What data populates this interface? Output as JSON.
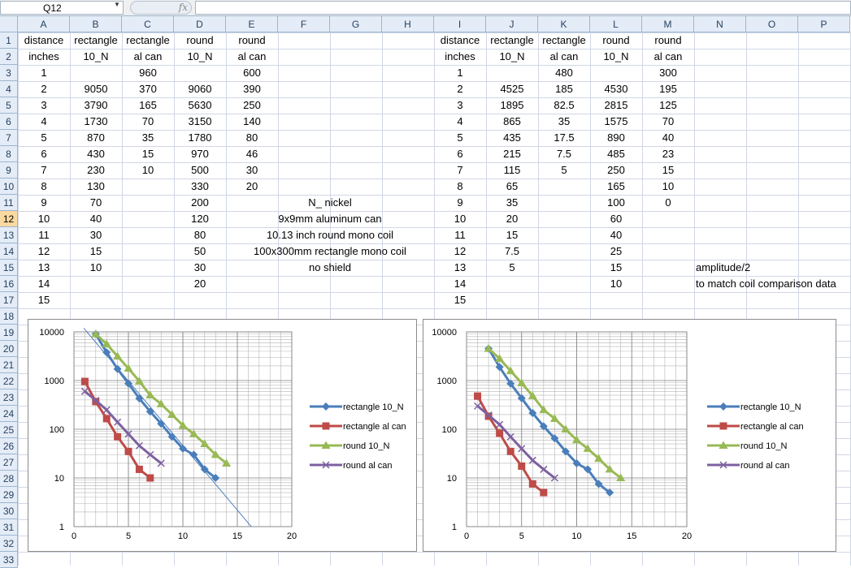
{
  "formula_bar": {
    "name_box": "Q12",
    "fx_label": "fx",
    "formula": ""
  },
  "columns": [
    "A",
    "B",
    "C",
    "D",
    "E",
    "F",
    "G",
    "H",
    "I",
    "J",
    "K",
    "L",
    "M",
    "N",
    "O",
    "P"
  ],
  "selected_row": 12,
  "rows": [
    {
      "n": 1,
      "cells": {
        "A": "distance",
        "B": "rectangle",
        "C": "rectangle",
        "D": "round",
        "E": "round",
        "I": "distance",
        "J": "rectangle",
        "K": "rectangle",
        "L": "round",
        "M": "round"
      }
    },
    {
      "n": 2,
      "cells": {
        "A": "inches",
        "B": "10_N",
        "C": "al can",
        "D": "10_N",
        "E": "al can",
        "I": "inches",
        "J": "10_N",
        "K": "al can",
        "L": "10_N",
        "M": "al can"
      }
    },
    {
      "n": 3,
      "cells": {
        "A": "1",
        "C": "960",
        "E": "600",
        "I": "1",
        "K": "480",
        "M": "300"
      }
    },
    {
      "n": 4,
      "cells": {
        "A": "2",
        "B": "9050",
        "C": "370",
        "D": "9060",
        "E": "390",
        "I": "2",
        "J": "4525",
        "K": "185",
        "L": "4530",
        "M": "195"
      }
    },
    {
      "n": 5,
      "cells": {
        "A": "3",
        "B": "3790",
        "C": "165",
        "D": "5630",
        "E": "250",
        "I": "3",
        "J": "1895",
        "K": "82.5",
        "L": "2815",
        "M": "125"
      }
    },
    {
      "n": 6,
      "cells": {
        "A": "4",
        "B": "1730",
        "C": "70",
        "D": "3150",
        "E": "140",
        "I": "4",
        "J": "865",
        "K": "35",
        "L": "1575",
        "M": "70"
      }
    },
    {
      "n": 7,
      "cells": {
        "A": "5",
        "B": "870",
        "C": "35",
        "D": "1780",
        "E": "80",
        "I": "5",
        "J": "435",
        "K": "17.5",
        "L": "890",
        "M": "40"
      }
    },
    {
      "n": 8,
      "cells": {
        "A": "6",
        "B": "430",
        "C": "15",
        "D": "970",
        "E": "46",
        "I": "6",
        "J": "215",
        "K": "7.5",
        "L": "485",
        "M": "23"
      }
    },
    {
      "n": 9,
      "cells": {
        "A": "7",
        "B": "230",
        "C": "10",
        "D": "500",
        "E": "30",
        "I": "7",
        "J": "115",
        "K": "5",
        "L": "250",
        "M": "15"
      }
    },
    {
      "n": 10,
      "cells": {
        "A": "8",
        "B": "130",
        "D": "330",
        "E": "20",
        "I": "8",
        "J": "65",
        "L": "165",
        "M": "10"
      }
    },
    {
      "n": 11,
      "cells": {
        "A": "9",
        "B": "70",
        "D": "200",
        "F": "N_ nickel",
        "I": "9",
        "J": "35",
        "L": "100",
        "M": "0"
      }
    },
    {
      "n": 12,
      "cells": {
        "A": "10",
        "B": "40",
        "D": "120",
        "F": "9x9mm aluminum can",
        "I": "10",
        "J": "20",
        "L": "60"
      }
    },
    {
      "n": 13,
      "cells": {
        "A": "11",
        "B": "30",
        "D": "80",
        "F": "10.13 inch round mono coil",
        "I": "11",
        "J": "15",
        "L": "40"
      }
    },
    {
      "n": 14,
      "cells": {
        "A": "12",
        "B": "15",
        "D": "50",
        "F": "100x300mm rectangle mono coil",
        "I": "12",
        "J": "7.5",
        "L": "25"
      }
    },
    {
      "n": 15,
      "cells": {
        "A": "13",
        "B": "10",
        "D": "30",
        "F": "no shield",
        "I": "13",
        "J": "5",
        "L": "15",
        "N": "amplitude/2"
      }
    },
    {
      "n": 16,
      "cells": {
        "A": "14",
        "D": "20",
        "I": "14",
        "L": "10",
        "N": "to match coil comparison data"
      }
    },
    {
      "n": 17,
      "cells": {
        "A": "15",
        "I": "15"
      }
    },
    {
      "n": 18,
      "cells": {}
    },
    {
      "n": 19,
      "cells": {}
    },
    {
      "n": 20,
      "cells": {}
    },
    {
      "n": 21,
      "cells": {}
    },
    {
      "n": 22,
      "cells": {}
    },
    {
      "n": 23,
      "cells": {}
    },
    {
      "n": 24,
      "cells": {}
    },
    {
      "n": 25,
      "cells": {}
    },
    {
      "n": 26,
      "cells": {}
    },
    {
      "n": 27,
      "cells": {}
    },
    {
      "n": 28,
      "cells": {}
    },
    {
      "n": 29,
      "cells": {}
    },
    {
      "n": 30,
      "cells": {}
    },
    {
      "n": 31,
      "cells": {}
    },
    {
      "n": 32,
      "cells": {}
    },
    {
      "n": 33,
      "cells": {}
    }
  ],
  "chart_data": [
    {
      "type": "scatter",
      "x_scale": "linear",
      "y_scale": "log",
      "xlim": [
        0,
        20
      ],
      "ylim": [
        1,
        10000
      ],
      "x_ticks": [
        "0",
        "5",
        "10",
        "15",
        "20"
      ],
      "y_ticks": [
        "1",
        "10",
        "100",
        "1000",
        "10000"
      ],
      "grid": "major and minor",
      "legend_position": "right",
      "trendline": {
        "series": "rectangle 10_N",
        "type": "exponential",
        "color": "#4f81bd"
      },
      "series": [
        {
          "name": "rectangle 10_N",
          "color": "#4a7ebb",
          "marker": "diamond",
          "x": [
            2,
            3,
            4,
            5,
            6,
            7,
            8,
            9,
            10,
            11,
            12,
            13
          ],
          "y": [
            9050,
            3790,
            1730,
            870,
            430,
            230,
            130,
            70,
            40,
            30,
            15,
            10
          ]
        },
        {
          "name": "rectangle al can",
          "color": "#be4b48",
          "marker": "square",
          "x": [
            1,
            2,
            3,
            4,
            5,
            6,
            7
          ],
          "y": [
            960,
            370,
            165,
            70,
            35,
            15,
            10
          ]
        },
        {
          "name": "round 10_N",
          "color": "#98b954",
          "marker": "triangle",
          "x": [
            2,
            3,
            4,
            5,
            6,
            7,
            8,
            9,
            10,
            11,
            12,
            13,
            14
          ],
          "y": [
            9060,
            5630,
            3150,
            1780,
            970,
            500,
            330,
            200,
            120,
            80,
            50,
            30,
            20
          ]
        },
        {
          "name": "round al can",
          "color": "#7d60a0",
          "marker": "x",
          "x": [
            1,
            2,
            3,
            4,
            5,
            6,
            7,
            8
          ],
          "y": [
            600,
            390,
            250,
            140,
            80,
            46,
            30,
            20
          ]
        }
      ]
    },
    {
      "type": "scatter",
      "x_scale": "linear",
      "y_scale": "log",
      "xlim": [
        0,
        20
      ],
      "ylim": [
        1,
        10000
      ],
      "x_ticks": [
        "0",
        "5",
        "10",
        "15",
        "20"
      ],
      "y_ticks": [
        "1",
        "10",
        "100",
        "1000",
        "10000"
      ],
      "grid": "major and minor",
      "legend_position": "right",
      "series": [
        {
          "name": "rectangle 10_N",
          "color": "#4a7ebb",
          "marker": "diamond",
          "x": [
            2,
            3,
            4,
            5,
            6,
            7,
            8,
            9,
            10,
            11,
            12,
            13
          ],
          "y": [
            4525,
            1895,
            865,
            435,
            215,
            115,
            65,
            35,
            20,
            15,
            7.5,
            5
          ]
        },
        {
          "name": "rectangle al can",
          "color": "#be4b48",
          "marker": "square",
          "x": [
            1,
            2,
            3,
            4,
            5,
            6,
            7
          ],
          "y": [
            480,
            185,
            82.5,
            35,
            17.5,
            7.5,
            5
          ]
        },
        {
          "name": "round 10_N",
          "color": "#98b954",
          "marker": "triangle",
          "x": [
            2,
            3,
            4,
            5,
            6,
            7,
            8,
            9,
            10,
            11,
            12,
            13,
            14
          ],
          "y": [
            4530,
            2815,
            1575,
            890,
            485,
            250,
            165,
            100,
            60,
            40,
            25,
            15,
            10
          ]
        },
        {
          "name": "round al can",
          "color": "#7d60a0",
          "marker": "x",
          "x": [
            1,
            2,
            3,
            4,
            5,
            6,
            7,
            8
          ],
          "y": [
            300,
            195,
            125,
            70,
            40,
            23,
            15,
            10
          ]
        }
      ]
    }
  ]
}
